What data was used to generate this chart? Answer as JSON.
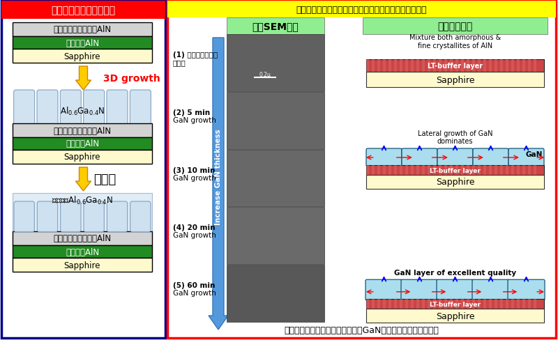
{
  "fig_width": 8.0,
  "fig_height": 4.89,
  "bg_color": "#ffffff",
  "left_panel": {
    "border_color": "#00008B",
    "border_lw": 2.5,
    "title_text": "本研究課題のアプローチ",
    "title_bg": "#ff0000",
    "title_color": "#ffffff",
    "sapphire_color": "#fffacd",
    "sputter_aln_color": "#228B22",
    "sputter_aln_text_color": "#ffffff",
    "homo_aln_color": "#d3d3d3",
    "algagan_color": "#cce0f0",
    "algagan_border": "#7799bb",
    "arrow_color": "#ffcc00",
    "arrow_edge": "#cc8800",
    "label_3d": "3D growth",
    "label_flat": "平坦化",
    "label_3d_color": "#ff0000"
  },
  "right_panel": {
    "border_color": "#ff0000",
    "border_lw": 2.5,
    "title_text": "赤崎教授がノーベルレクチャーで用いたスライドの抜粋",
    "title_bg": "#ffff00",
    "title_color": "#000000",
    "sem_header": "表面SEM写真",
    "sem_header_bg": "#90EE90",
    "model_header": "成長モデル図",
    "model_header_bg": "#90EE90",
    "step_labels": [
      "(1) 低温バッファ層\n堆積時",
      "(2) 5 min\nGaN growth",
      "(3) 10 min\nGaN growth",
      "(4) 20 min\nGaN growth",
      "(5) 60 min\nGaN growth"
    ],
    "arrow_color": "#5599dd",
    "arrow_label": "Increase GaN thickness",
    "bottom_text": "低温バッファ層を用いて高品質なGaNを得る方法（赤崎方式）",
    "sapphire_color": "#fffacd",
    "lt_buffer_color": "#cc4444",
    "gan_color": "#aaddee",
    "sem_color": "#555555",
    "model1_text": "Mixture both amorphous &\nfine crystallites of AlN",
    "model2_text1": "Lateral growth of GaN",
    "model2_text2": "dominates",
    "model2_gan_label": "GaN",
    "model3_title": "GaN layer of excellent quality"
  }
}
